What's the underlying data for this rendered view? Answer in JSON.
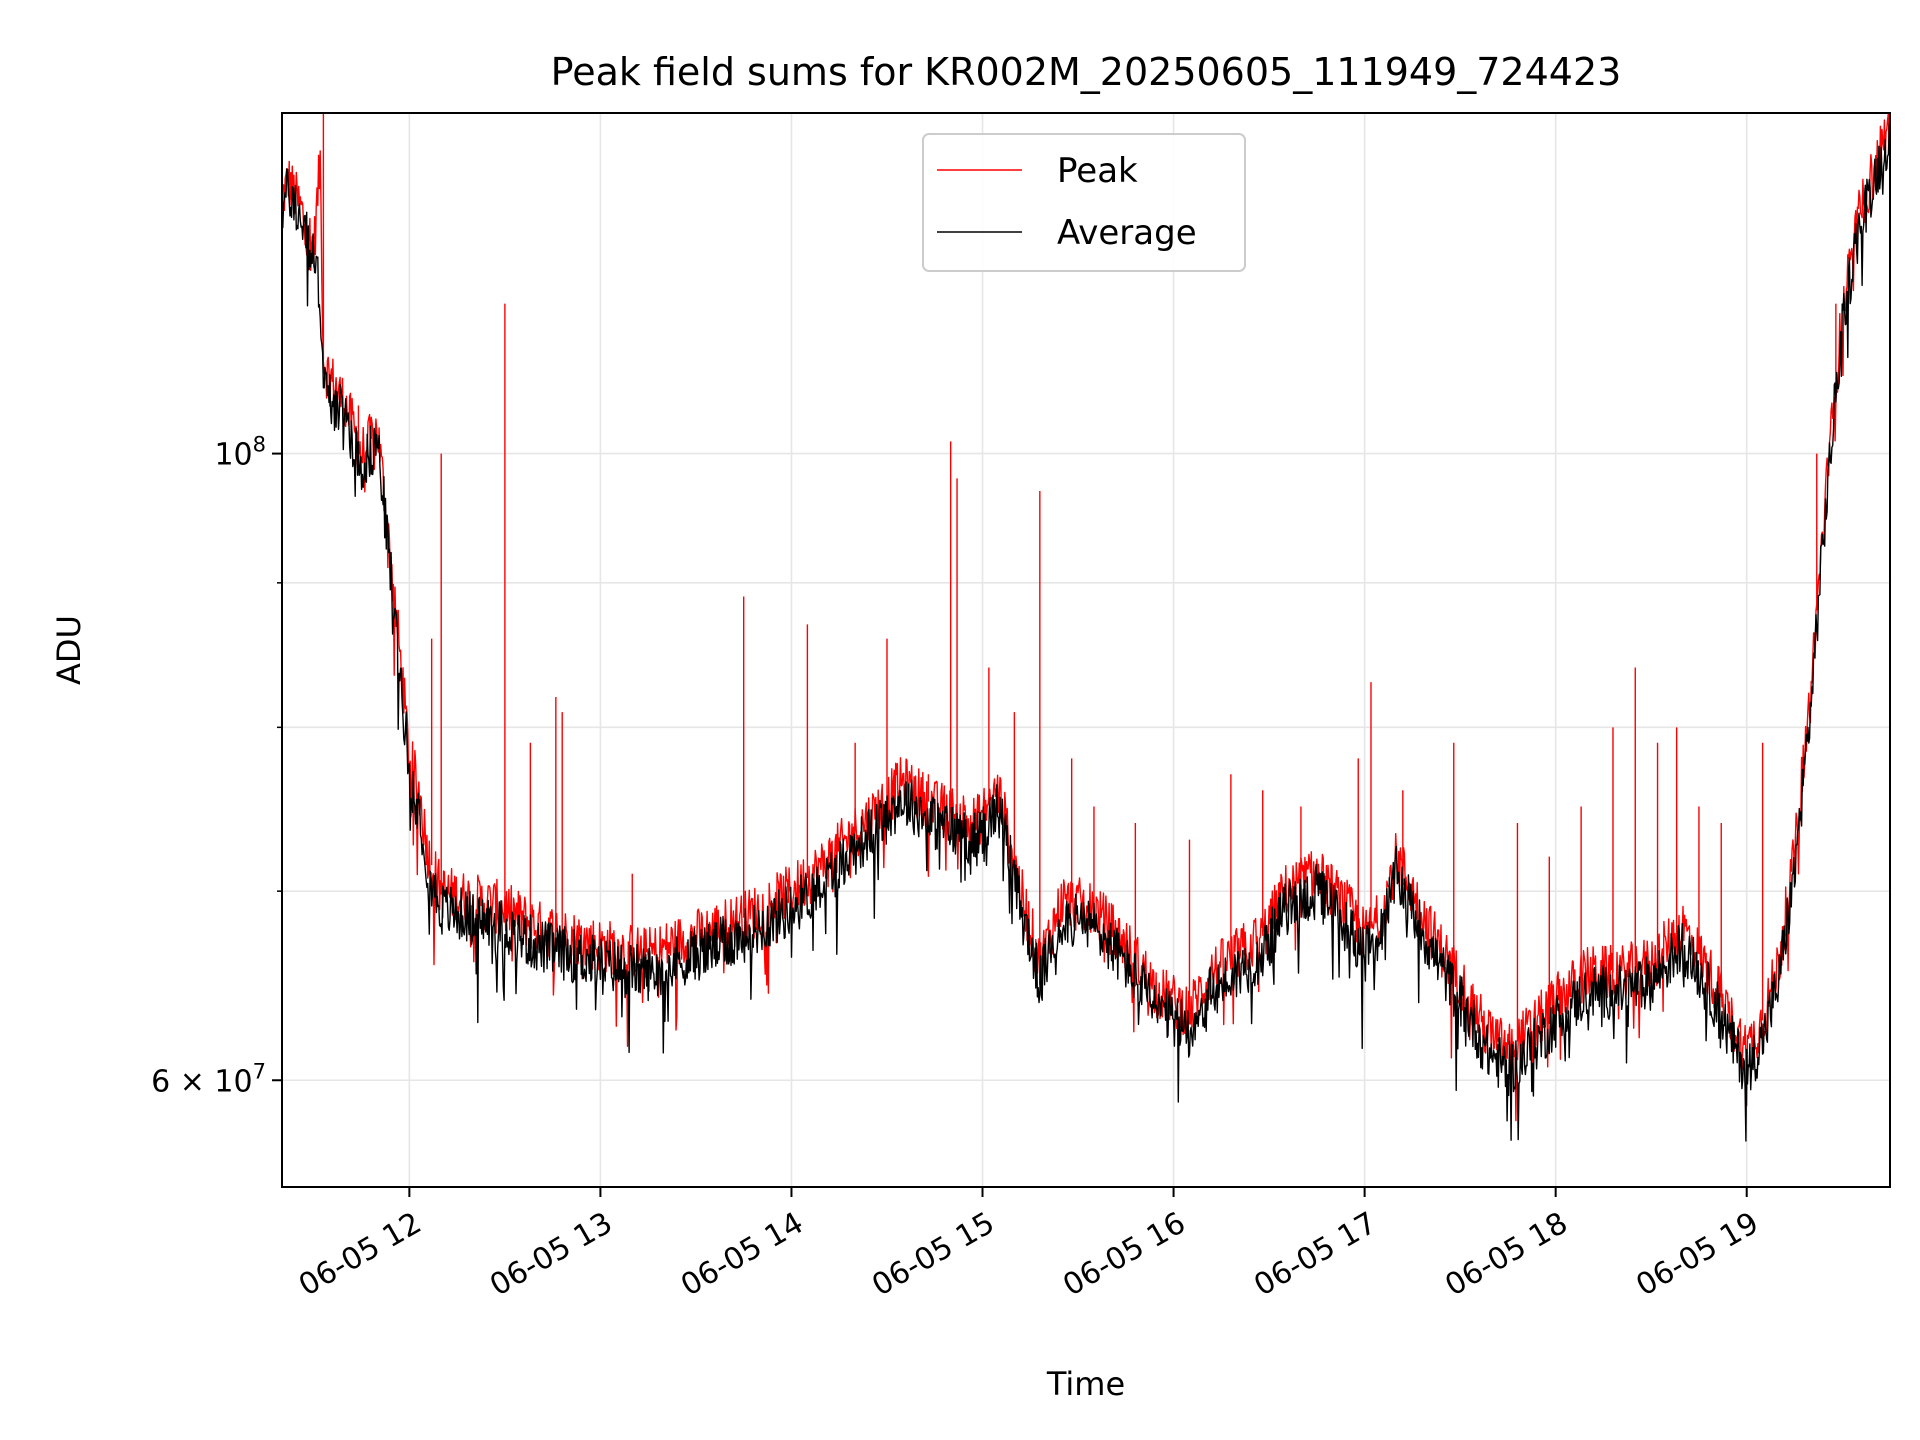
{
  "chart_data": {
    "type": "line",
    "title": "Peak field sums for KR002M_20250605_111949_724423",
    "xlabel": "Time",
    "ylabel": "ADU",
    "y_scale": "log",
    "xlim": [
      "2025-06-05 11:20",
      "2025-06-05 19:45"
    ],
    "ylim": [
      55000000,
      132000000
    ],
    "x_tick_labels": [
      "06-05 12",
      "06-05 13",
      "06-05 14",
      "06-05 15",
      "06-05 16",
      "06-05 17",
      "06-05 18",
      "06-05 19"
    ],
    "x_ticks": [
      "2025-06-05 12:00",
      "2025-06-05 13:00",
      "2025-06-05 14:00",
      "2025-06-05 15:00",
      "2025-06-05 16:00",
      "2025-06-05 17:00",
      "2025-06-05 18:00",
      "2025-06-05 19:00"
    ],
    "y_major_ticks": [
      {
        "value": 100000000,
        "base": "10",
        "exp": "8",
        "mult": ""
      },
      {
        "value": 60000000,
        "base": "10",
        "exp": "7",
        "mult": "6 × "
      }
    ],
    "y_minor_grid": [
      70000000,
      80000000,
      90000000
    ],
    "grid": true,
    "legend_position": "upper center",
    "colors": {
      "peak": "#ff0000",
      "average": "#000000"
    },
    "series": [
      {
        "name": "Peak",
        "x": [
          "11:20",
          "11:22",
          "11:26",
          "11:30",
          "11:32",
          "11:33",
          "11:34",
          "11:40",
          "11:45",
          "11:50",
          "11:54",
          "11:57",
          "12:00",
          "12:03",
          "12:06",
          "12:10",
          "12:20",
          "12:30",
          "12:40",
          "12:50",
          "13:00",
          "13:15",
          "13:30",
          "13:45",
          "14:00",
          "14:10",
          "14:20",
          "14:28",
          "14:35",
          "14:45",
          "14:52",
          "14:58",
          "15:05",
          "15:12",
          "15:18",
          "15:25",
          "15:35",
          "15:45",
          "15:55",
          "16:05",
          "16:12",
          "16:20",
          "16:28",
          "16:35",
          "16:45",
          "16:55",
          "17:00",
          "17:05",
          "17:10",
          "17:15",
          "17:20",
          "17:25",
          "17:32",
          "17:38",
          "17:45",
          "17:52",
          "18:00",
          "18:10",
          "18:20",
          "18:30",
          "18:40",
          "18:50",
          "18:55",
          "19:00",
          "19:05",
          "19:10",
          "19:15",
          "19:20",
          "19:25",
          "19:30",
          "19:35",
          "19:40",
          "19:45"
        ],
        "y": [
          123000000,
          125000000,
          122000000,
          118000000,
          127000000,
          108000000,
          107000000,
          104000000,
          100000000,
          102000000,
          92000000,
          85000000,
          78000000,
          76000000,
          72000000,
          70000000,
          69500000,
          69000000,
          68000000,
          67500000,
          67000000,
          66500000,
          67500000,
          68500000,
          70000000,
          71500000,
          73500000,
          75000000,
          76500000,
          75000000,
          74500000,
          74000000,
          76000000,
          70000000,
          66000000,
          69500000,
          69000000,
          67000000,
          64500000,
          63500000,
          65500000,
          66500000,
          67500000,
          70000000,
          71000000,
          69000000,
          67500000,
          68500000,
          72000000,
          70000000,
          68000000,
          66500000,
          64500000,
          62500000,
          61500000,
          62500000,
          64000000,
          65500000,
          65500000,
          66000000,
          68000000,
          65000000,
          63000000,
          61500000,
          63000000,
          66000000,
          72000000,
          82000000,
          97000000,
          112000000,
          121000000,
          126000000,
          131000000
        ]
      },
      {
        "name": "Average",
        "x": [
          "11:20",
          "11:22",
          "11:26",
          "11:30",
          "11:32",
          "11:33",
          "11:34",
          "11:40",
          "11:45",
          "11:50",
          "11:54",
          "11:57",
          "12:00",
          "12:03",
          "12:06",
          "12:10",
          "12:20",
          "12:30",
          "12:40",
          "12:50",
          "13:00",
          "13:15",
          "13:30",
          "13:45",
          "14:00",
          "14:10",
          "14:20",
          "14:28",
          "14:35",
          "14:45",
          "14:52",
          "14:58",
          "15:05",
          "15:12",
          "15:18",
          "15:25",
          "15:35",
          "15:45",
          "15:55",
          "16:05",
          "16:12",
          "16:20",
          "16:28",
          "16:35",
          "16:45",
          "16:55",
          "17:00",
          "17:05",
          "17:10",
          "17:15",
          "17:20",
          "17:25",
          "17:32",
          "17:38",
          "17:45",
          "17:52",
          "18:00",
          "18:10",
          "18:20",
          "18:30",
          "18:40",
          "18:50",
          "18:55",
          "19:00",
          "19:05",
          "19:10",
          "19:15",
          "19:20",
          "19:25",
          "19:30",
          "19:35",
          "19:40",
          "19:45"
        ],
        "y": [
          122000000,
          124000000,
          121000000,
          117000000,
          114000000,
          106000000,
          105000000,
          103000000,
          99000000,
          101000000,
          91000000,
          84000000,
          77000000,
          75000000,
          71000000,
          69000000,
          68500000,
          68000000,
          67000000,
          66500000,
          66000000,
          65500000,
          66500000,
          67500000,
          69000000,
          70500000,
          72500000,
          74000000,
          75500000,
          74000000,
          73500000,
          73000000,
          75000000,
          69000000,
          65000000,
          68500000,
          68000000,
          66000000,
          63500000,
          62500000,
          64500000,
          65500000,
          66500000,
          69000000,
          70000000,
          68000000,
          66500000,
          67500000,
          71000000,
          69000000,
          67000000,
          65500000,
          63500000,
          61500000,
          60500000,
          61500000,
          63000000,
          64500000,
          64500000,
          65000000,
          67000000,
          64000000,
          62000000,
          60500000,
          62000000,
          65000000,
          71000000,
          81000000,
          96000000,
          111000000,
          120000000,
          125000000,
          130000000
        ]
      }
    ],
    "spikes": {
      "x": [
        "11:33",
        "11:44",
        "11:48",
        "12:07",
        "12:10",
        "12:30",
        "12:38",
        "12:46",
        "12:48",
        "13:10",
        "13:45",
        "14:05",
        "14:20",
        "14:30",
        "14:43",
        "14:50",
        "14:52",
        "15:02",
        "15:10",
        "15:18",
        "15:28",
        "15:35",
        "15:48",
        "16:05",
        "16:18",
        "16:28",
        "16:40",
        "16:58",
        "17:02",
        "17:12",
        "17:28",
        "17:48",
        "17:58",
        "18:08",
        "18:18",
        "18:25",
        "18:32",
        "18:38",
        "18:45",
        "18:52",
        "19:05",
        "19:22",
        "19:28"
      ],
      "y": [
        132000000,
        104000000,
        103000000,
        86000000,
        100000000,
        113000000,
        79000000,
        82000000,
        81000000,
        71000000,
        89000000,
        87000000,
        79000000,
        86000000,
        77000000,
        101000000,
        98000000,
        84000000,
        81000000,
        97000000,
        78000000,
        75000000,
        74000000,
        73000000,
        77000000,
        76000000,
        75000000,
        78000000,
        83000000,
        76000000,
        79000000,
        74000000,
        72000000,
        75000000,
        80000000,
        84000000,
        79000000,
        80000000,
        75000000,
        74000000,
        79000000,
        100000000,
        113000000
      ]
    }
  },
  "legend": {
    "peak_label": "Peak",
    "average_label": "Average"
  }
}
